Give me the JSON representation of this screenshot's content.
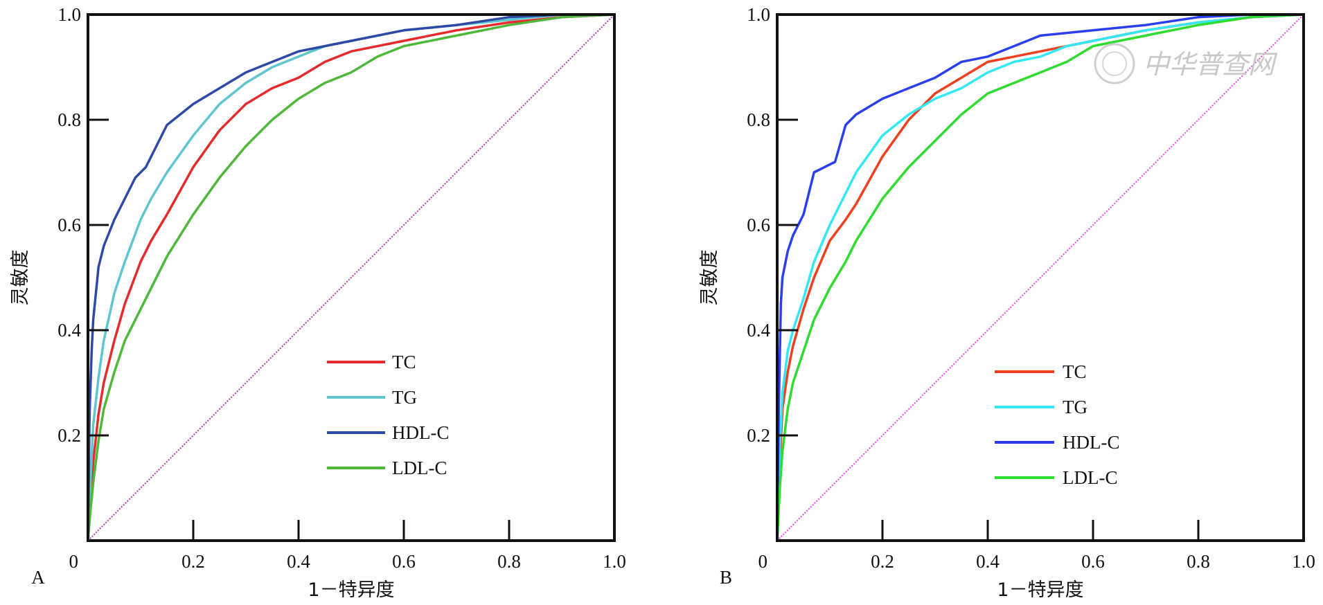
{
  "chart_data": [
    {
      "type": "line",
      "panel_label": "A",
      "xlabel": "1－特异度",
      "ylabel": "灵敏度",
      "xlim": [
        0,
        1.0
      ],
      "ylim": [
        0,
        1.0
      ],
      "x_ticks": [
        "0",
        "0.2",
        "0.4",
        "0.6",
        "0.8",
        "1.0"
      ],
      "y_ticks": [
        "0.2",
        "0.4",
        "0.6",
        "0.8",
        "1.0"
      ],
      "grid": false,
      "legend_position": "bottom-right",
      "reference_line": {
        "color": "#b03ab0",
        "style": "dotted",
        "x": [
          0,
          1
        ],
        "y": [
          0,
          1
        ]
      },
      "series": [
        {
          "name": "TC",
          "color": "#e52b2b",
          "x": [
            0,
            0.005,
            0.01,
            0.02,
            0.03,
            0.05,
            0.07,
            0.1,
            0.12,
            0.15,
            0.2,
            0.25,
            0.3,
            0.35,
            0.4,
            0.45,
            0.5,
            0.6,
            0.7,
            0.8,
            0.9,
            1.0
          ],
          "y": [
            0,
            0.08,
            0.15,
            0.24,
            0.3,
            0.38,
            0.45,
            0.53,
            0.57,
            0.62,
            0.71,
            0.78,
            0.83,
            0.86,
            0.88,
            0.91,
            0.93,
            0.95,
            0.97,
            0.985,
            0.995,
            1.0
          ]
        },
        {
          "name": "TG",
          "color": "#5fc6cf",
          "x": [
            0,
            0.005,
            0.01,
            0.02,
            0.03,
            0.05,
            0.07,
            0.1,
            0.12,
            0.15,
            0.2,
            0.25,
            0.3,
            0.35,
            0.4,
            0.45,
            0.5,
            0.6,
            0.7,
            0.8,
            0.9,
            1.0
          ],
          "y": [
            0,
            0.12,
            0.22,
            0.31,
            0.38,
            0.47,
            0.53,
            0.61,
            0.65,
            0.7,
            0.77,
            0.83,
            0.87,
            0.9,
            0.92,
            0.94,
            0.95,
            0.97,
            0.98,
            0.99,
            1.0,
            1.0
          ]
        },
        {
          "name": "HDL-C",
          "color": "#2e4aa6",
          "x": [
            0,
            0.003,
            0.007,
            0.01,
            0.02,
            0.03,
            0.05,
            0.07,
            0.09,
            0.11,
            0.13,
            0.15,
            0.2,
            0.25,
            0.3,
            0.35,
            0.4,
            0.45,
            0.5,
            0.6,
            0.7,
            0.8,
            0.9,
            1.0
          ],
          "y": [
            0,
            0.24,
            0.36,
            0.42,
            0.52,
            0.56,
            0.61,
            0.65,
            0.69,
            0.71,
            0.75,
            0.79,
            0.83,
            0.86,
            0.89,
            0.91,
            0.93,
            0.94,
            0.95,
            0.97,
            0.98,
            0.995,
            1.0,
            1.0
          ]
        },
        {
          "name": "LDL-C",
          "color": "#4fb83a",
          "x": [
            0,
            0.005,
            0.01,
            0.02,
            0.03,
            0.05,
            0.07,
            0.1,
            0.12,
            0.15,
            0.2,
            0.25,
            0.3,
            0.35,
            0.4,
            0.45,
            0.5,
            0.55,
            0.6,
            0.7,
            0.8,
            0.9,
            1.0
          ],
          "y": [
            0,
            0.06,
            0.11,
            0.19,
            0.25,
            0.32,
            0.38,
            0.44,
            0.48,
            0.54,
            0.62,
            0.69,
            0.75,
            0.8,
            0.84,
            0.87,
            0.89,
            0.92,
            0.94,
            0.96,
            0.98,
            0.995,
            1.0
          ]
        }
      ]
    },
    {
      "type": "line",
      "panel_label": "B",
      "xlabel": "1－特异度",
      "ylabel": "灵敏度",
      "xlim": [
        0,
        1.0
      ],
      "ylim": [
        0,
        1.0
      ],
      "x_ticks": [
        "0",
        "0.2",
        "0.4",
        "0.6",
        "0.8",
        "1.0"
      ],
      "y_ticks": [
        "0.2",
        "0.4",
        "0.6",
        "0.8",
        "1.0"
      ],
      "grid": false,
      "legend_position": "bottom-right",
      "reference_line": {
        "color": "#ee44ee",
        "style": "dotted",
        "x": [
          0,
          1
        ],
        "y": [
          0,
          1
        ]
      },
      "series": [
        {
          "name": "TC",
          "color": "#f0401e",
          "x": [
            0,
            0.005,
            0.01,
            0.02,
            0.03,
            0.05,
            0.07,
            0.1,
            0.13,
            0.15,
            0.2,
            0.25,
            0.3,
            0.35,
            0.4,
            0.45,
            0.5,
            0.55,
            0.6,
            0.7,
            0.8,
            0.9,
            1.0
          ],
          "y": [
            0,
            0.15,
            0.25,
            0.32,
            0.37,
            0.44,
            0.5,
            0.57,
            0.61,
            0.64,
            0.73,
            0.8,
            0.85,
            0.88,
            0.91,
            0.92,
            0.93,
            0.94,
            0.95,
            0.97,
            0.985,
            0.995,
            1.0
          ]
        },
        {
          "name": "TG",
          "color": "#33e8f2",
          "x": [
            0,
            0.005,
            0.01,
            0.02,
            0.03,
            0.05,
            0.07,
            0.1,
            0.13,
            0.15,
            0.2,
            0.25,
            0.3,
            0.35,
            0.4,
            0.45,
            0.5,
            0.55,
            0.6,
            0.7,
            0.8,
            0.9,
            1.0
          ],
          "y": [
            0,
            0.18,
            0.28,
            0.36,
            0.4,
            0.46,
            0.53,
            0.6,
            0.66,
            0.7,
            0.77,
            0.81,
            0.84,
            0.86,
            0.89,
            0.91,
            0.92,
            0.94,
            0.95,
            0.97,
            0.985,
            0.995,
            1.0
          ]
        },
        {
          "name": "HDL-C",
          "color": "#2b3ff0",
          "x": [
            0,
            0.003,
            0.007,
            0.01,
            0.02,
            0.03,
            0.04,
            0.05,
            0.06,
            0.07,
            0.09,
            0.11,
            0.13,
            0.15,
            0.2,
            0.25,
            0.3,
            0.35,
            0.4,
            0.45,
            0.5,
            0.6,
            0.7,
            0.8,
            0.9,
            1.0
          ],
          "y": [
            0,
            0.25,
            0.45,
            0.5,
            0.55,
            0.58,
            0.6,
            0.62,
            0.66,
            0.7,
            0.71,
            0.72,
            0.79,
            0.81,
            0.84,
            0.86,
            0.88,
            0.91,
            0.92,
            0.94,
            0.96,
            0.97,
            0.98,
            0.995,
            1.0,
            1.0
          ]
        },
        {
          "name": "LDL-C",
          "color": "#2fdc2f",
          "x": [
            0,
            0.005,
            0.01,
            0.02,
            0.03,
            0.05,
            0.07,
            0.1,
            0.13,
            0.15,
            0.2,
            0.25,
            0.3,
            0.35,
            0.4,
            0.45,
            0.5,
            0.55,
            0.6,
            0.7,
            0.8,
            0.9,
            1.0
          ],
          "y": [
            0,
            0.1,
            0.17,
            0.25,
            0.3,
            0.36,
            0.42,
            0.48,
            0.53,
            0.57,
            0.65,
            0.71,
            0.76,
            0.81,
            0.85,
            0.87,
            0.89,
            0.91,
            0.94,
            0.96,
            0.98,
            0.995,
            1.0
          ]
        }
      ]
    }
  ],
  "watermark": {
    "text": "中华普查网",
    "icon": "seal-logo-icon"
  }
}
